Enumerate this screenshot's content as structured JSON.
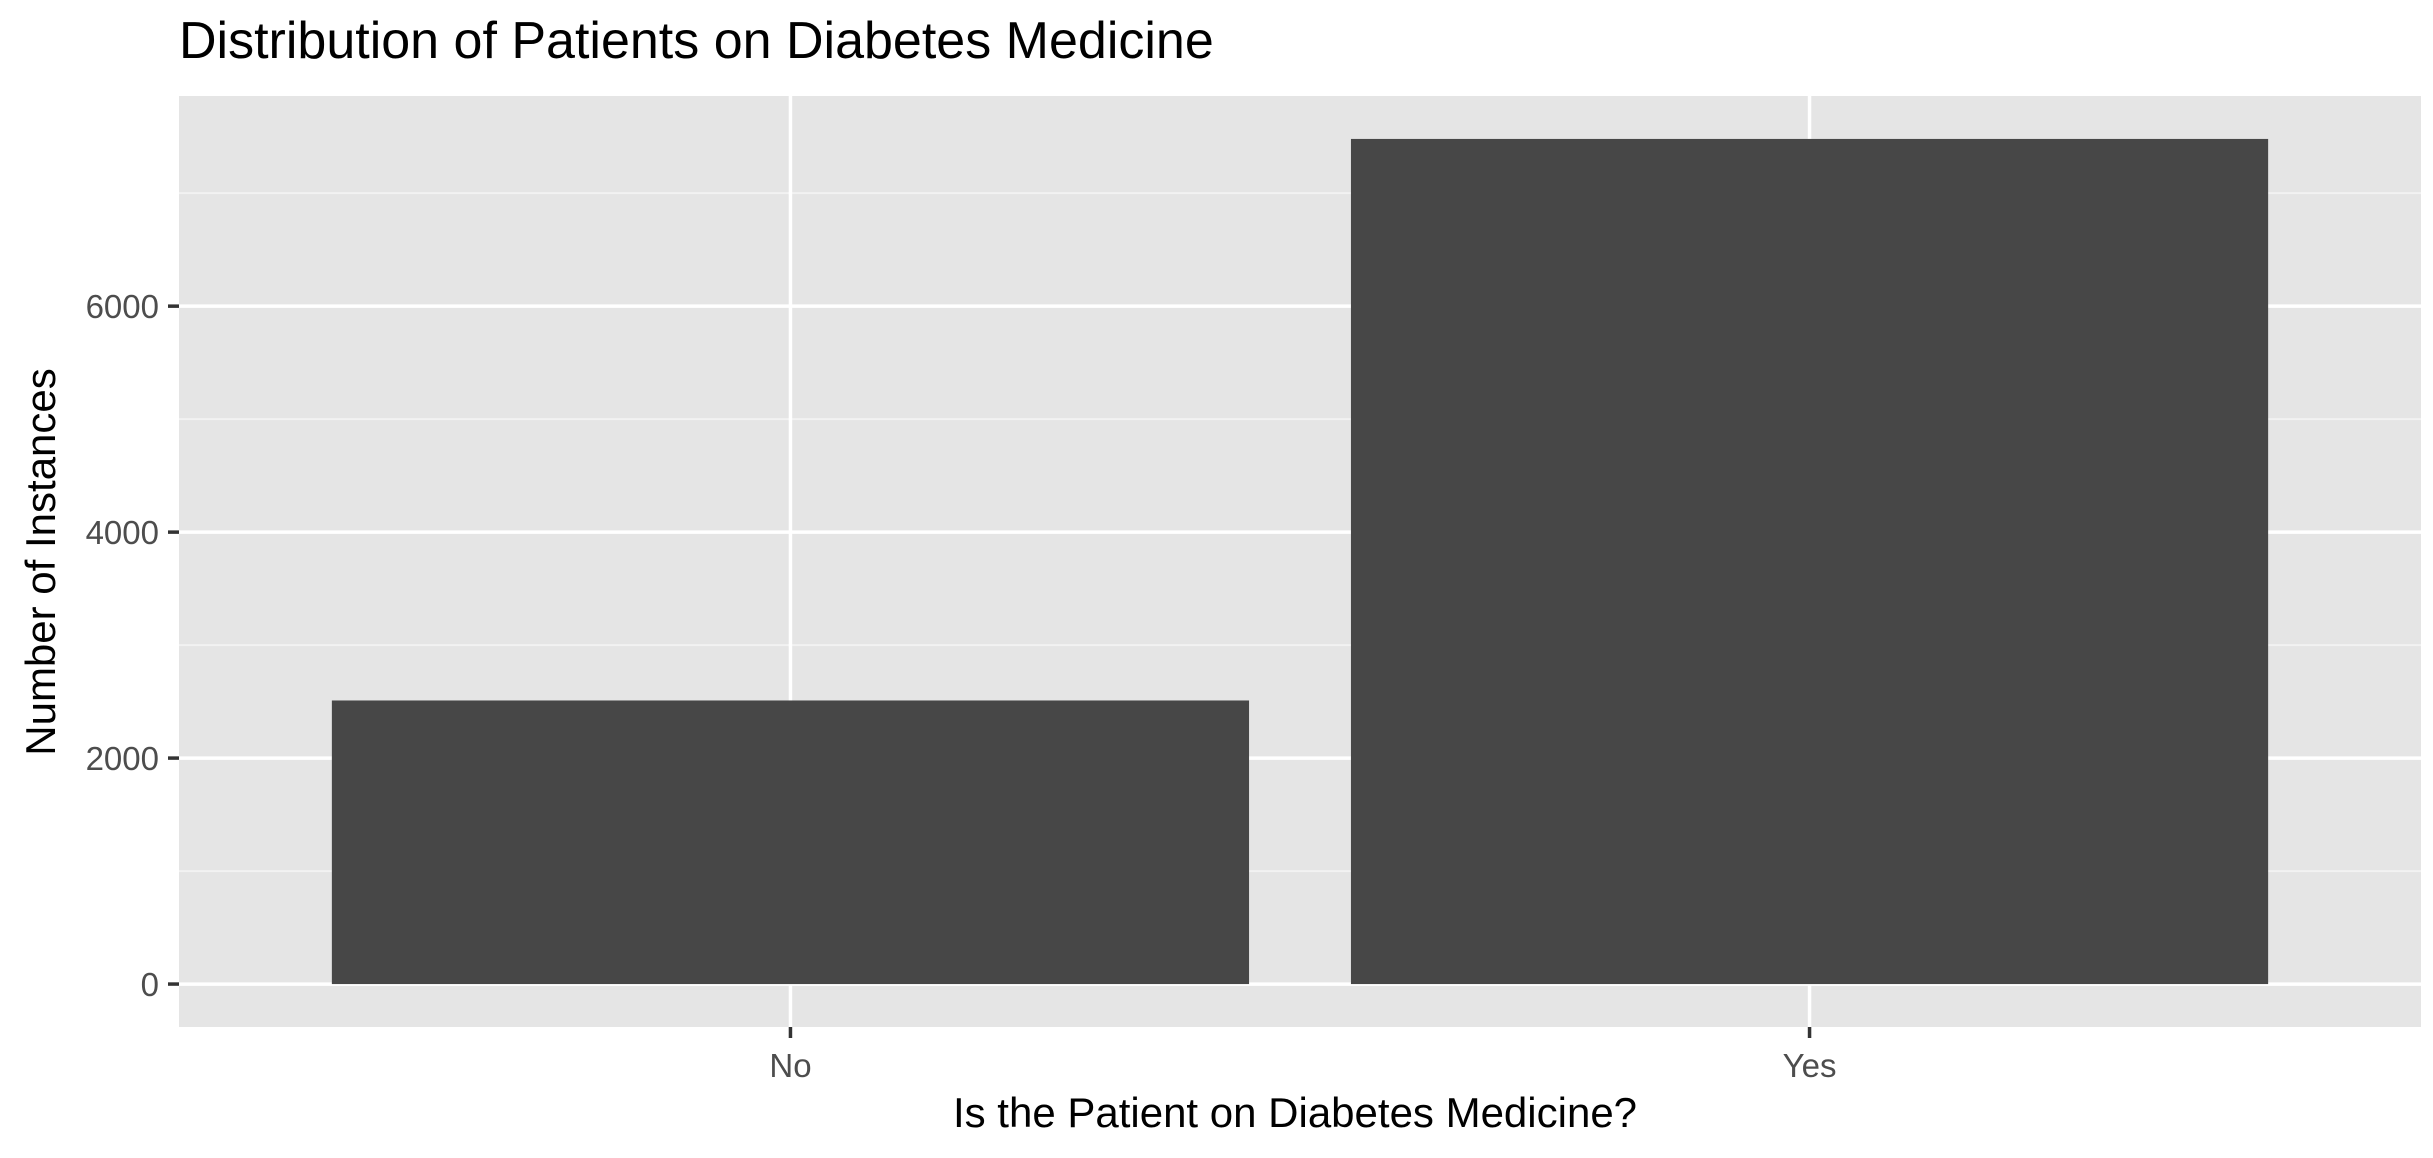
{
  "chart_data": {
    "type": "bar",
    "title": "Distribution of Patients on Diabetes Medicine",
    "xlabel": "Is the Patient on Diabetes Medicine?",
    "ylabel": "Number of Instances",
    "categories": [
      "No",
      "Yes"
    ],
    "values": [
      2510,
      7480
    ],
    "ylim": [
      -380,
      7860
    ],
    "yticks": [
      0,
      2000,
      4000,
      6000
    ],
    "ytick_labels": [
      "0",
      "2000",
      "4000",
      "6000"
    ],
    "grid": true,
    "legend": "none",
    "colors": {
      "bar": "#474747",
      "panel_background": "#E5E5E5",
      "grid_major": "#FFFFFF",
      "grid_minor": "#F2F2F2",
      "tick_text": "#4D4D4D",
      "title_text": "#000000"
    }
  }
}
